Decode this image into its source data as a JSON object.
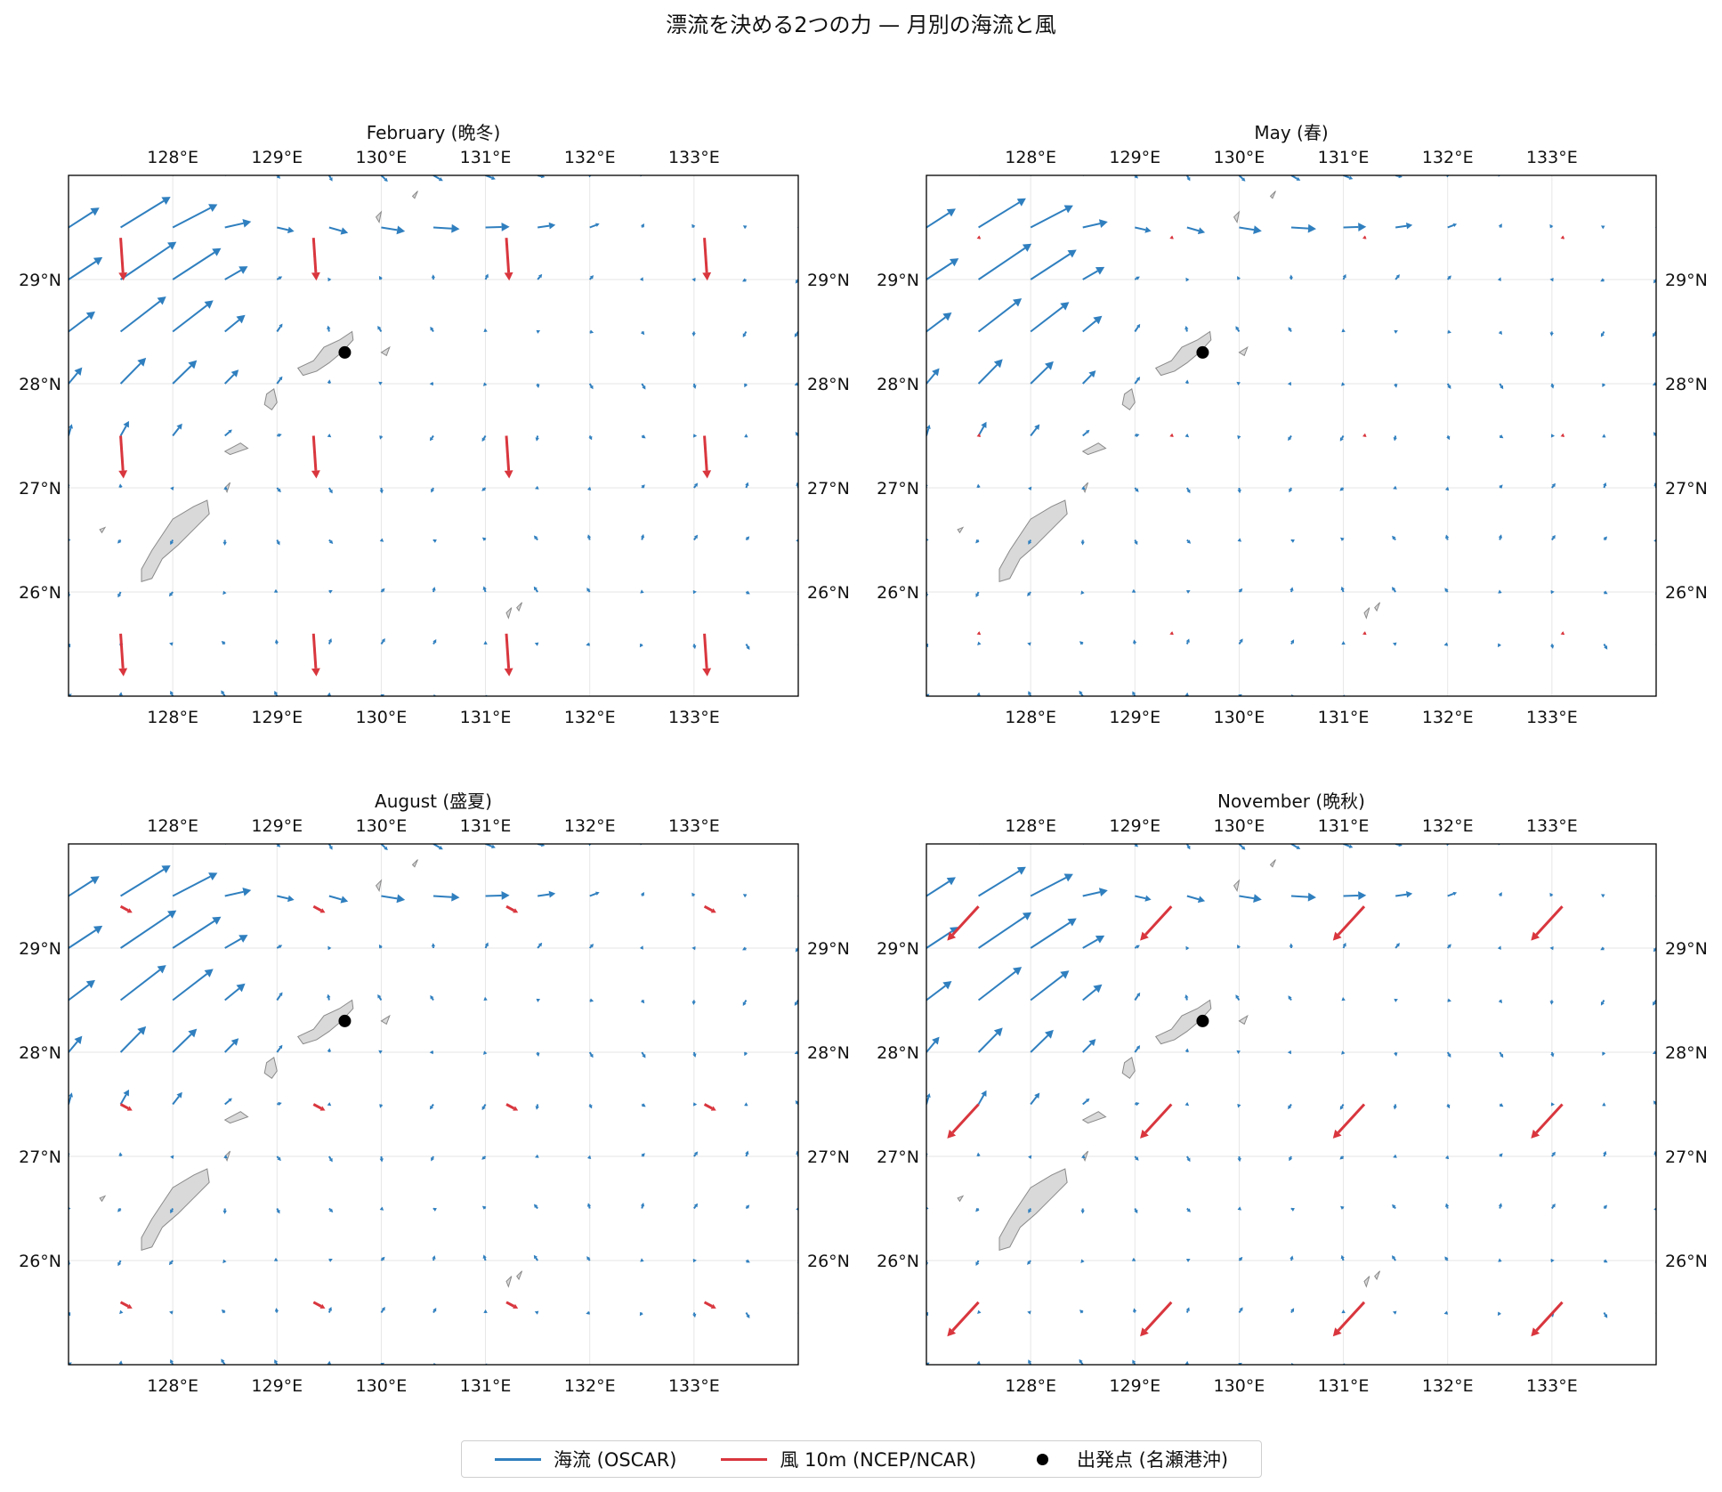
{
  "title": "漂流を決める2つの力 — 月別の海流と風",
  "colors": {
    "current": "#2f7fbf",
    "wind": "#d9363e",
    "land_fill": "#d9d9d9",
    "land_edge": "#8a8a8a",
    "grid": "#e6e6e6",
    "start_point": "#000000"
  },
  "axes": {
    "lon_range": [
      127.0,
      134.0
    ],
    "lat_range": [
      25.0,
      30.0
    ],
    "lon_ticks": [
      128,
      129,
      130,
      131,
      132,
      133
    ],
    "lat_ticks": [
      26,
      27,
      28,
      29
    ],
    "lon_tick_labels": [
      "128°E",
      "129°E",
      "130°E",
      "131°E",
      "132°E",
      "133°E"
    ],
    "lat_tick_labels": [
      "26°N",
      "27°N",
      "28°N",
      "29°N"
    ]
  },
  "start_point": {
    "lon": 129.65,
    "lat": 28.3,
    "label": "出発点 (名瀬港沖)"
  },
  "legend": {
    "current_label": "海流 (OSCAR)",
    "wind_label": "風 10m (NCEP/NCAR)",
    "start_label": "出発点 (名瀬港沖)"
  },
  "panels": [
    {
      "title": "February (晩冬)",
      "month": "February",
      "wind": {
        "u": 0.02,
        "v": -0.3,
        "scale": 1.0
      },
      "current_factor": 1.0
    },
    {
      "title": "May (春)",
      "month": "May",
      "wind": {
        "u": -0.05,
        "v": -0.02,
        "scale": 0.25
      },
      "current_factor": 0.95
    },
    {
      "title": "August (盛夏)",
      "month": "August",
      "wind": {
        "u": 0.15,
        "v": -0.08,
        "scale": 0.55
      },
      "current_factor": 1.0
    },
    {
      "title": "November (晩秋)",
      "month": "November",
      "wind": {
        "u": -0.22,
        "v": -0.24,
        "scale": 1.0
      },
      "current_factor": 0.95
    }
  ],
  "chart_data": {
    "type": "quiver-map",
    "description_units": "lon/lat degrees",
    "current_field_grid": {
      "lon_start": 127.0,
      "lon_step": 0.5,
      "lat_start": 25.0,
      "lat_step": 0.5
    },
    "wind_field_grid": {
      "lons": [
        127.5,
        129.35,
        131.2,
        133.1
      ],
      "lats": [
        25.6,
        27.5,
        29.4
      ]
    }
  }
}
